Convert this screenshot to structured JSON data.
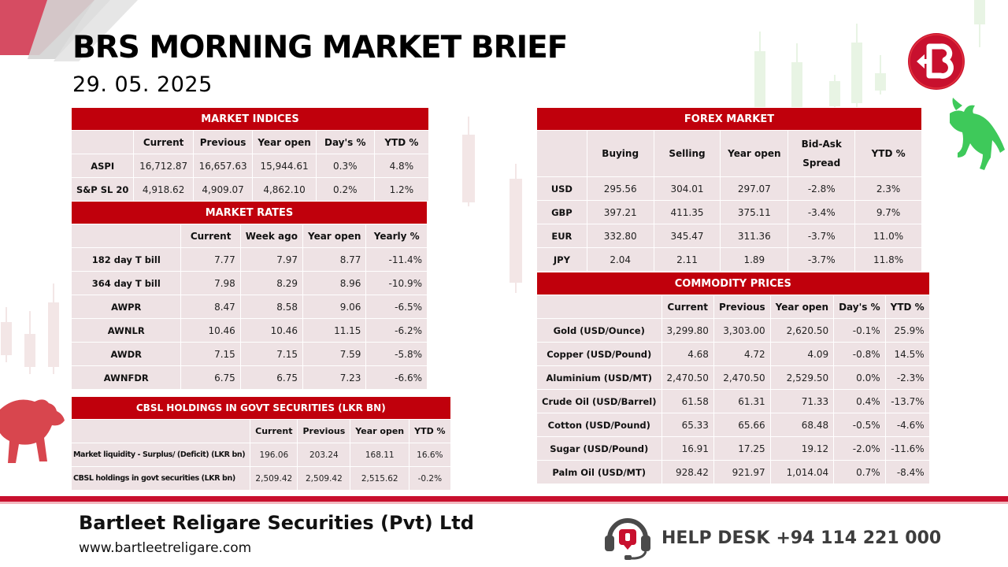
{
  "header": {
    "title": "BRS MORNING MARKET BRIEF",
    "date": "29. 05. 2025"
  },
  "market_indices": {
    "caption": "MARKET INDICES",
    "columns": [
      "Current",
      "Previous",
      "Year open",
      "Day's %",
      "YTD %"
    ],
    "rows": [
      {
        "label": "ASPI",
        "values": [
          "16,712.87",
          "16,657.63",
          "15,944.61",
          "0.3%",
          "4.8%"
        ]
      },
      {
        "label": "S&P SL 20",
        "values": [
          "4,918.62",
          "4,909.07",
          "4,862.10",
          "0.2%",
          "1.2%"
        ]
      }
    ]
  },
  "market_rates": {
    "caption": "MARKET RATES",
    "columns": [
      "Current",
      "Week ago",
      "Year open",
      "Yearly %"
    ],
    "rows": [
      {
        "label": "182 day T bill",
        "values": [
          "7.77",
          "7.97",
          "8.77",
          "-11.4%"
        ]
      },
      {
        "label": "364 day T bill",
        "values": [
          "7.98",
          "8.29",
          "8.96",
          "-10.9%"
        ]
      },
      {
        "label": "AWPR",
        "values": [
          "8.47",
          "8.58",
          "9.06",
          "-6.5%"
        ]
      },
      {
        "label": "AWNLR",
        "values": [
          "10.46",
          "10.46",
          "11.15",
          "-6.2%"
        ]
      },
      {
        "label": "AWDR",
        "values": [
          "7.15",
          "7.15",
          "7.59",
          "-5.8%"
        ]
      },
      {
        "label": "AWNFDR",
        "values": [
          "6.75",
          "6.75",
          "7.23",
          "-6.6%"
        ]
      }
    ]
  },
  "cbsl_holdings": {
    "caption": "CBSL HOLDINGS IN GOVT SECURITIES (LKR BN)",
    "columns": [
      "Current",
      "Previous",
      "Year open",
      "YTD %"
    ],
    "rows": [
      {
        "label": "Market liquidity - Surplus/ (Deficit) (LKR bn)",
        "values": [
          "196.06",
          "203.24",
          "168.11",
          "16.6%"
        ]
      },
      {
        "label": "CBSL holdings in govt securities (LKR bn)",
        "values": [
          "2,509.42",
          "2,509.42",
          "2,515.62",
          "-0.2%"
        ]
      }
    ]
  },
  "forex_market": {
    "caption": "FOREX MARKET",
    "columns": [
      "Buying",
      "Selling",
      "Year open",
      "Bid-Ask Spread",
      "YTD %"
    ],
    "rows": [
      {
        "label": "USD",
        "values": [
          "295.56",
          "304.01",
          "297.07",
          "-2.8%",
          "2.3%"
        ]
      },
      {
        "label": "GBP",
        "values": [
          "397.21",
          "411.35",
          "375.11",
          "-3.4%",
          "9.7%"
        ]
      },
      {
        "label": "EUR",
        "values": [
          "332.80",
          "345.47",
          "311.36",
          "-3.7%",
          "11.0%"
        ]
      },
      {
        "label": "JPY",
        "values": [
          "2.04",
          "2.11",
          "1.89",
          "-3.7%",
          "11.8%"
        ]
      }
    ]
  },
  "commodity_prices": {
    "caption": "COMMODITY PRICES",
    "columns": [
      "Current",
      "Previous",
      "Year open",
      "Day's %",
      "YTD %"
    ],
    "rows": [
      {
        "label": "Gold (USD/Ounce)",
        "values": [
          "3,299.80",
          "3,303.00",
          "2,620.50",
          "-0.1%",
          "25.9%"
        ]
      },
      {
        "label": "Copper (USD/Pound)",
        "values": [
          "4.68",
          "4.72",
          "4.09",
          "-0.8%",
          "14.5%"
        ]
      },
      {
        "label": "Aluminium (USD/MT)",
        "values": [
          "2,470.50",
          "2,470.50",
          "2,529.50",
          "0.0%",
          "-2.3%"
        ]
      },
      {
        "label": "Crude Oil (USD/Barrel)",
        "values": [
          "61.58",
          "61.31",
          "71.33",
          "0.4%",
          "-13.7%"
        ]
      },
      {
        "label": "Cotton (USD/Pound)",
        "values": [
          "65.33",
          "65.66",
          "68.48",
          "-0.5%",
          "-4.6%"
        ]
      },
      {
        "label": "Sugar (USD/Pound)",
        "values": [
          "16.91",
          "17.25",
          "19.12",
          "-2.0%",
          "-11.6%"
        ]
      },
      {
        "label": "Palm Oil (USD/MT)",
        "values": [
          "928.42",
          "921.97",
          "1,014.04",
          "0.7%",
          "-8.4%"
        ]
      }
    ]
  },
  "footer": {
    "company": "Bartleet Religare Securities (Pvt) Ltd",
    "website": "www.bartleetreligare.com",
    "helpdesk_label": "HELP DESK",
    "helpdesk_number": "+94 114 221 000"
  },
  "colors": {
    "brand_red": "#c0000c",
    "cell_background": "#eee2e4",
    "bull_green": "#3ec95a",
    "bear_red": "#d8464e"
  },
  "icons": [
    "brs-logo",
    "bull-icon",
    "bear-icon",
    "headset-icon"
  ]
}
